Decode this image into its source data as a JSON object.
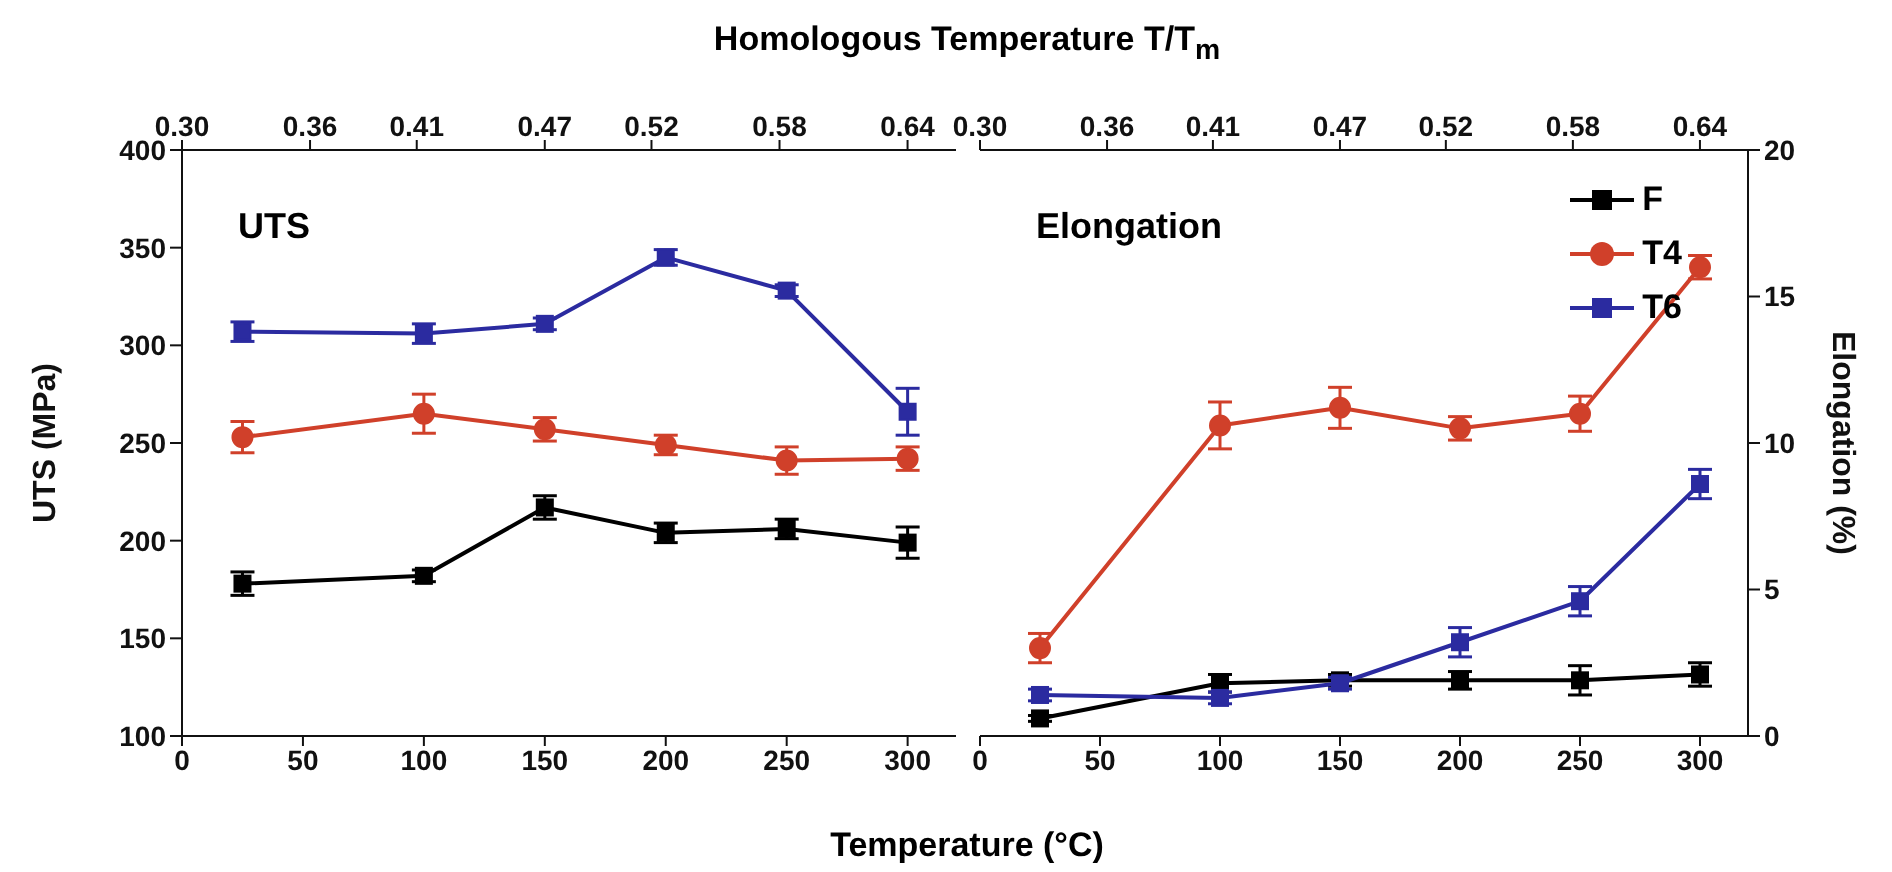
{
  "chart_data": [
    {
      "type": "line",
      "title": "UTS",
      "xlabel": "Temperature (°C)",
      "x2label": "Homologous Temperature T/T$_{m}$",
      "ylabel": "UTS (MPa)",
      "x": [
        25,
        100,
        150,
        200,
        250,
        300
      ],
      "xlim": [
        0,
        320
      ],
      "xticks": [
        0,
        50,
        100,
        150,
        200,
        250,
        300
      ],
      "x2lim": [
        0.3,
        0.6627
      ],
      "x2ticks": [
        {
          "value": 0.3,
          "label": "0.30"
        },
        {
          "value": 0.36,
          "label": "0.36"
        },
        {
          "value": 0.41,
          "label": "0.41"
        },
        {
          "value": 0.47,
          "label": "0.47"
        },
        {
          "value": 0.52,
          "label": "0.52"
        },
        {
          "value": 0.58,
          "label": "0.58"
        },
        {
          "value": 0.64,
          "label": "0.64"
        }
      ],
      "ylim": [
        100,
        400
      ],
      "yticks": [
        100,
        150,
        200,
        250,
        300,
        350,
        400
      ],
      "legend": false,
      "series": [
        {
          "color": "#000000",
          "marker": "square",
          "values": [
            178,
            182,
            217,
            204,
            206,
            199
          ],
          "errors": [
            6,
            3,
            6,
            5,
            5,
            8
          ]
        },
        {
          "color": "#d0402a",
          "marker": "circle",
          "values": [
            253,
            265,
            257,
            249,
            241,
            242
          ],
          "errors": [
            8,
            10,
            6,
            5,
            7,
            6
          ]
        },
        {
          "color": "#2b2ba0",
          "marker": "square",
          "values": [
            307,
            306,
            311,
            345,
            328,
            266
          ],
          "errors": [
            5,
            5,
            3,
            4,
            3,
            12
          ]
        }
      ]
    },
    {
      "type": "line",
      "title": "Elongation",
      "y2label": "Elongation (%)",
      "x": [
        25,
        100,
        150,
        200,
        250,
        300
      ],
      "xlim": [
        0,
        320
      ],
      "xticks": [
        0,
        50,
        100,
        150,
        200,
        250,
        300
      ],
      "x2lim": [
        0.3,
        0.6627
      ],
      "x2ticks": [
        {
          "value": 0.3,
          "label": "0.30"
        },
        {
          "value": 0.36,
          "label": "0.36"
        },
        {
          "value": 0.41,
          "label": "0.41"
        },
        {
          "value": 0.47,
          "label": "0.47"
        },
        {
          "value": 0.52,
          "label": "0.52"
        },
        {
          "value": 0.58,
          "label": "0.58"
        },
        {
          "value": 0.64,
          "label": "0.64"
        }
      ],
      "y2lim": [
        0,
        20
      ],
      "y2ticks": [
        0,
        5,
        10,
        15,
        20
      ],
      "legend": "top right",
      "series": [
        {
          "name": "F",
          "axis": "y2",
          "color": "#000000",
          "marker": "square",
          "values": [
            0.6,
            1.8,
            1.9,
            1.9,
            1.9,
            2.1
          ],
          "errors": [
            0.1,
            0.3,
            0.2,
            0.3,
            0.5,
            0.4
          ]
        },
        {
          "name": "T4",
          "axis": "y2",
          "color": "#d0402a",
          "marker": "circle",
          "values": [
            3.0,
            10.6,
            11.2,
            10.5,
            11.0,
            16.0
          ],
          "errors": [
            0.5,
            0.8,
            0.7,
            0.4,
            0.6,
            0.4
          ]
        },
        {
          "name": "T6",
          "axis": "y2",
          "color": "#2b2ba0",
          "marker": "square",
          "values": [
            1.4,
            1.3,
            1.8,
            3.2,
            4.6,
            8.6
          ],
          "errors": [
            0.2,
            0.2,
            0.2,
            0.5,
            0.5,
            0.5
          ]
        }
      ]
    }
  ]
}
